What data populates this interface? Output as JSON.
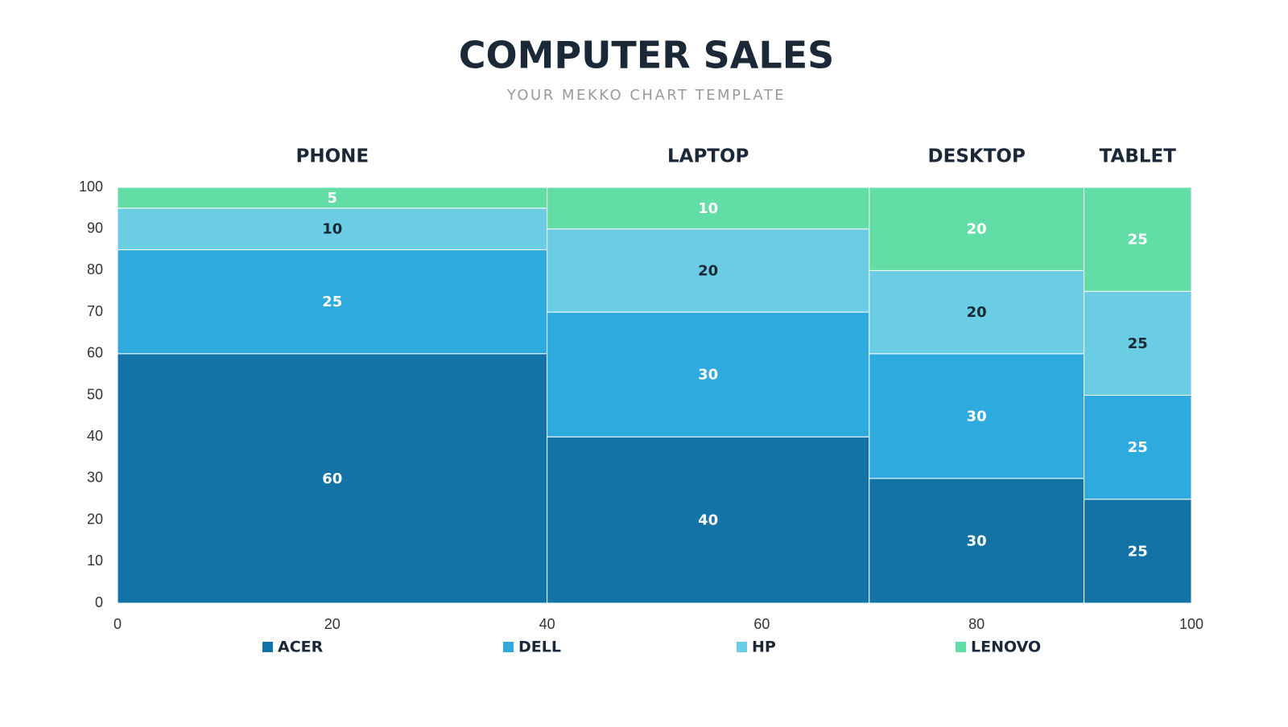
{
  "chart_data": {
    "type": "mekko",
    "title": "COMPUTER SALES",
    "subtitle": "YOUR MEKKO CHART TEMPLATE",
    "categories": [
      "PHONE",
      "LAPTOP",
      "DESKTOP",
      "TABLET"
    ],
    "widths": [
      40,
      30,
      20,
      10
    ],
    "series": [
      {
        "name": "ACER",
        "color": "#1373a6",
        "label_color": "#ffffff",
        "values": [
          60,
          40,
          30,
          25
        ]
      },
      {
        "name": "DELL",
        "color": "#2eaadf",
        "label_color": "#ffffff",
        "values": [
          25,
          30,
          30,
          25
        ]
      },
      {
        "name": "HP",
        "color": "#6acde3",
        "label_color": "#1b2838",
        "values": [
          10,
          20,
          20,
          25
        ]
      },
      {
        "name": "LENOVO",
        "color": "#62dda5",
        "label_color": "#ffffff",
        "values": [
          5,
          10,
          20,
          25
        ]
      }
    ],
    "xlim": [
      0,
      100
    ],
    "xticks": [
      0,
      20,
      40,
      60,
      80,
      100
    ],
    "ylim": [
      0,
      100
    ],
    "yticks": [
      0,
      10,
      20,
      30,
      40,
      50,
      60,
      70,
      80,
      90,
      100
    ]
  }
}
